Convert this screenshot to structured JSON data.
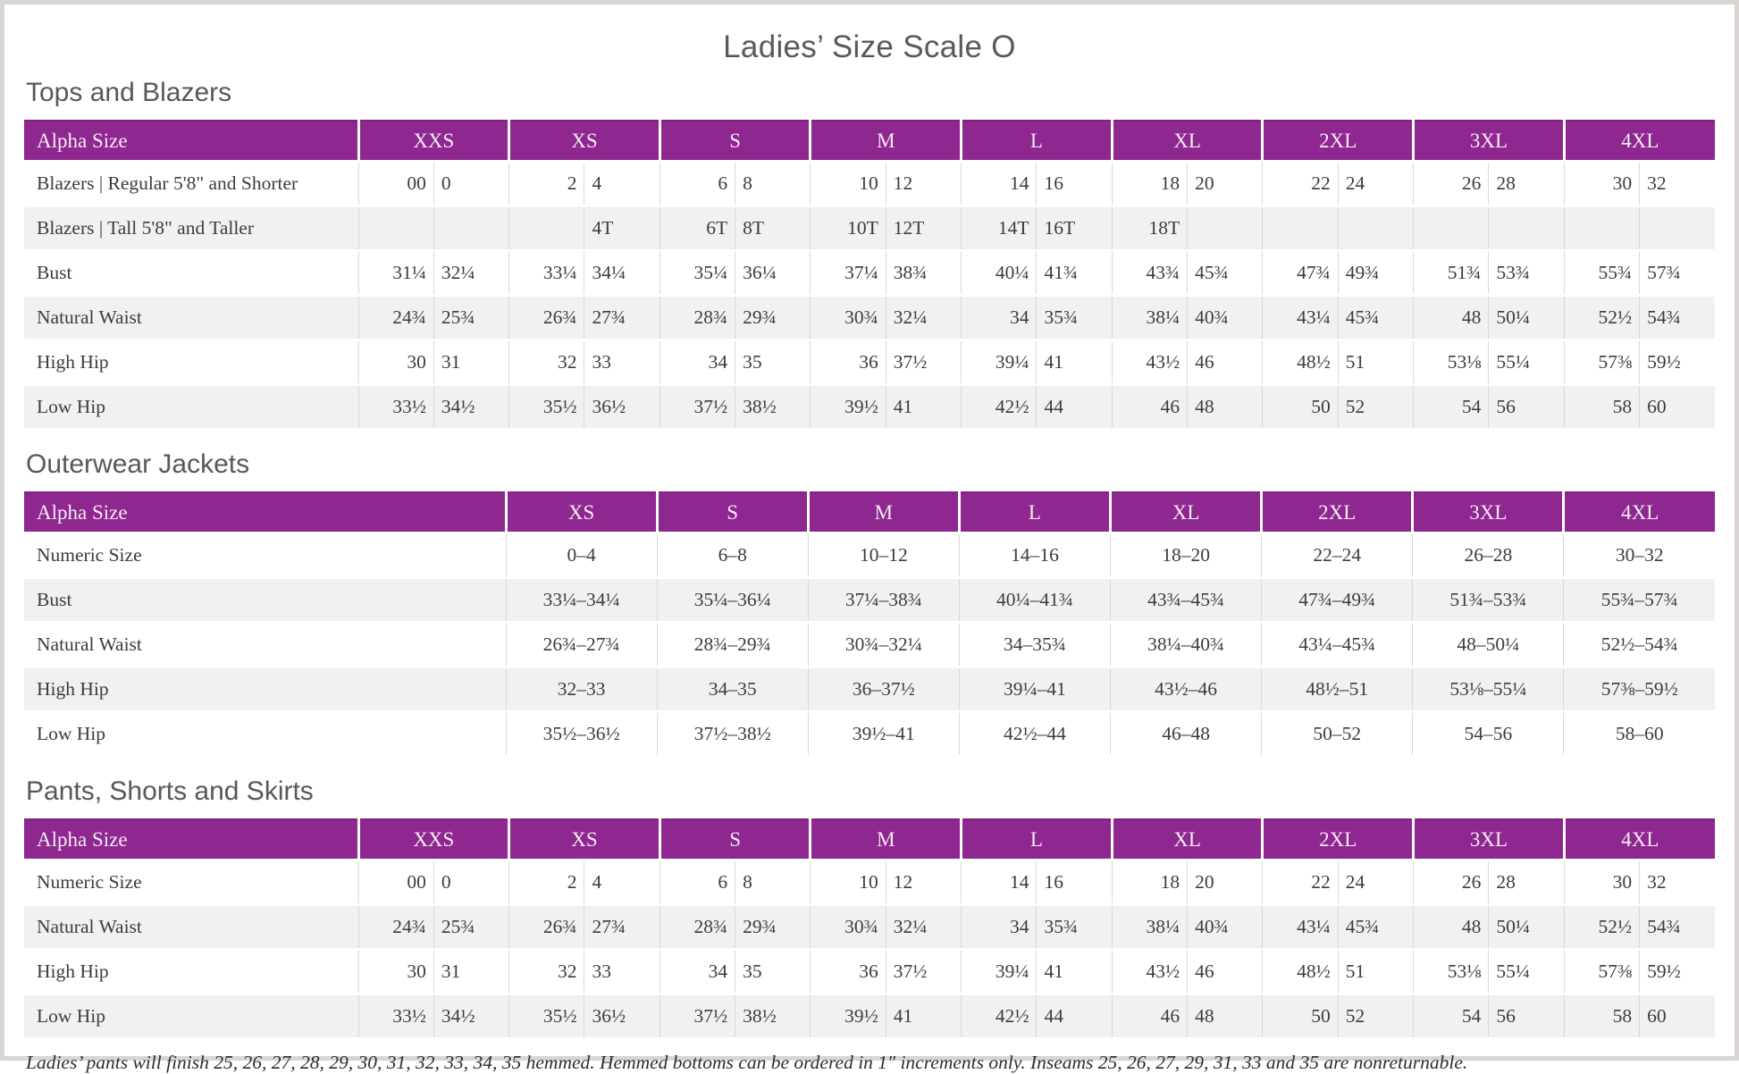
{
  "page": {
    "title": "Ladies’ Size Scale O",
    "footnote": "Ladies’ pants will finish 25, 26, 27, 28, 29, 30, 31, 32, 33, 34, 35 hemmed. Hemmed bottoms can be ordered in 1\" increments only. Inseams 25, 26, 27, 29, 31, 33 and 35 are nonreturnable."
  },
  "colors": {
    "header_purple": "#8e278f",
    "header_text": "#f7ecf7",
    "heading_gray": "#57585a",
    "row_alt_gray": "#f2f1ef",
    "cell_divider": "#dbd8d4",
    "body_text": "#3c3c3c"
  },
  "tables": [
    {
      "id": "tops-and-blazers",
      "heading": "Tops and Blazers",
      "header_label": "Alpha Size",
      "paired": true,
      "sizes": [
        "XXS",
        "XS",
        "S",
        "M",
        "L",
        "XL",
        "2XL",
        "3XL",
        "4XL"
      ],
      "rows": [
        {
          "label": "Blazers | Regular 5'8\" and Shorter",
          "values": [
            "00",
            "0",
            "2",
            "4",
            "6",
            "8",
            "10",
            "12",
            "14",
            "16",
            "18",
            "20",
            "22",
            "24",
            "26",
            "28",
            "30",
            "32"
          ]
        },
        {
          "label": "Blazers | Tall 5'8\" and Taller",
          "values": [
            "",
            "",
            "",
            "4T",
            "6T",
            "8T",
            "10T",
            "12T",
            "14T",
            "16T",
            "18T",
            "",
            "",
            "",
            "",
            "",
            "",
            ""
          ]
        },
        {
          "label": "Bust",
          "values": [
            "31¼",
            "32¼",
            "33¼",
            "34¼",
            "35¼",
            "36¼",
            "37¼",
            "38¾",
            "40¼",
            "41¾",
            "43¾",
            "45¾",
            "47¾",
            "49¾",
            "51¾",
            "53¾",
            "55¾",
            "57¾"
          ]
        },
        {
          "label": "Natural Waist",
          "values": [
            "24¾",
            "25¾",
            "26¾",
            "27¾",
            "28¾",
            "29¾",
            "30¾",
            "32¼",
            "34",
            "35¾",
            "38¼",
            "40¾",
            "43¼",
            "45¾",
            "48",
            "50¼",
            "52½",
            "54¾"
          ]
        },
        {
          "label": "High Hip",
          "values": [
            "30",
            "31",
            "32",
            "33",
            "34",
            "35",
            "36",
            "37½",
            "39¼",
            "41",
            "43½",
            "46",
            "48½",
            "51",
            "53⅛",
            "55¼",
            "57⅜",
            "59½"
          ]
        },
        {
          "label": "Low Hip",
          "values": [
            "33½",
            "34½",
            "35½",
            "36½",
            "37½",
            "38½",
            "39½",
            "41",
            "42½",
            "44",
            "46",
            "48",
            "50",
            "52",
            "54",
            "56",
            "58",
            "60"
          ]
        }
      ]
    },
    {
      "id": "outerwear-jackets",
      "heading": "Outerwear Jackets",
      "header_label": "Alpha Size",
      "paired": false,
      "sizes": [
        "XS",
        "S",
        "M",
        "L",
        "XL",
        "2XL",
        "3XL",
        "4XL"
      ],
      "rows": [
        {
          "label": "Numeric Size",
          "values": [
            "0–4",
            "6–8",
            "10–12",
            "14–16",
            "18–20",
            "22–24",
            "26–28",
            "30–32"
          ]
        },
        {
          "label": "Bust",
          "values": [
            "33¼–34¼",
            "35¼–36¼",
            "37¼–38¾",
            "40¼–41¾",
            "43¾–45¾",
            "47¾–49¾",
            "51¾–53¾",
            "55¾–57¾"
          ]
        },
        {
          "label": "Natural Waist",
          "values": [
            "26¾–27¾",
            "28¾–29¾",
            "30¾–32¼",
            "34–35¾",
            "38¼–40¾",
            "43¼–45¾",
            "48–50¼",
            "52½–54¾"
          ]
        },
        {
          "label": "High Hip",
          "values": [
            "32–33",
            "34–35",
            "36–37½",
            "39¼–41",
            "43½–46",
            "48½–51",
            "53⅛–55¼",
            "57⅜–59½"
          ]
        },
        {
          "label": "Low Hip",
          "values": [
            "35½–36½",
            "37½–38½",
            "39½–41",
            "42½–44",
            "46–48",
            "50–52",
            "54–56",
            "58–60"
          ]
        }
      ]
    },
    {
      "id": "pants-shorts-and-skirts",
      "heading": "Pants, Shorts and Skirts",
      "header_label": "Alpha Size",
      "paired": true,
      "sizes": [
        "XXS",
        "XS",
        "S",
        "M",
        "L",
        "XL",
        "2XL",
        "3XL",
        "4XL"
      ],
      "rows": [
        {
          "label": "Numeric Size",
          "values": [
            "00",
            "0",
            "2",
            "4",
            "6",
            "8",
            "10",
            "12",
            "14",
            "16",
            "18",
            "20",
            "22",
            "24",
            "26",
            "28",
            "30",
            "32"
          ]
        },
        {
          "label": "Natural Waist",
          "values": [
            "24¾",
            "25¾",
            "26¾",
            "27¾",
            "28¾",
            "29¾",
            "30¾",
            "32¼",
            "34",
            "35¾",
            "38¼",
            "40¾",
            "43¼",
            "45¾",
            "48",
            "50¼",
            "52½",
            "54¾"
          ]
        },
        {
          "label": "High Hip",
          "values": [
            "30",
            "31",
            "32",
            "33",
            "34",
            "35",
            "36",
            "37½",
            "39¼",
            "41",
            "43½",
            "46",
            "48½",
            "51",
            "53⅛",
            "55¼",
            "57⅜",
            "59½"
          ]
        },
        {
          "label": "Low Hip",
          "values": [
            "33½",
            "34½",
            "35½",
            "36½",
            "37½",
            "38½",
            "39½",
            "41",
            "42½",
            "44",
            "46",
            "48",
            "50",
            "52",
            "54",
            "56",
            "58",
            "60"
          ]
        }
      ]
    }
  ]
}
